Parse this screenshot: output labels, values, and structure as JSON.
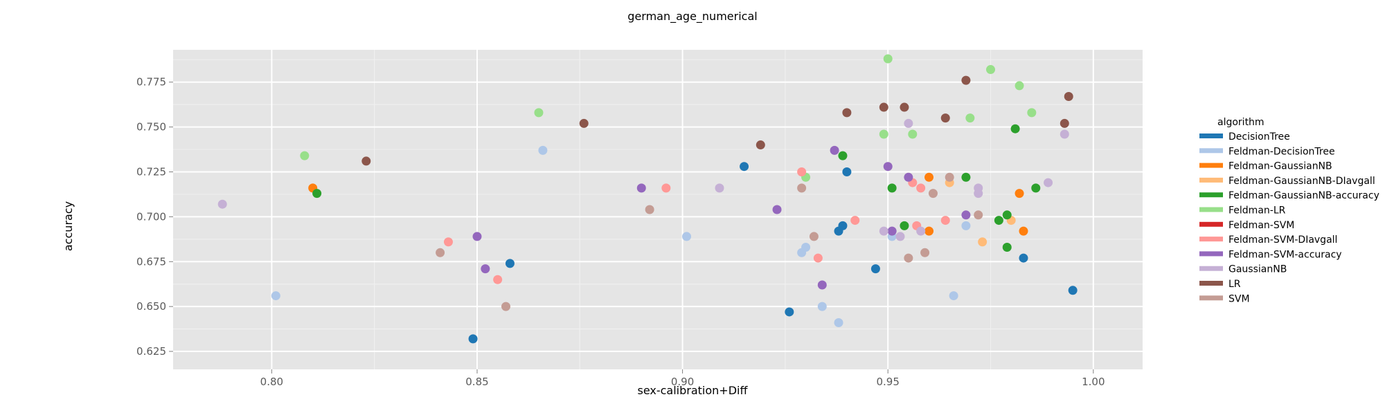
{
  "chart_data": {
    "type": "scatter",
    "title": "german_age_numerical",
    "xlabel": "sex-calibration+Diff",
    "ylabel": "accuracy",
    "xlim": [
      0.776,
      1.012
    ],
    "ylim": [
      0.615,
      0.793
    ],
    "x_ticks": [
      "0.80",
      "0.85",
      "0.90",
      "0.95",
      "1.00"
    ],
    "y_ticks": [
      "0.625",
      "0.650",
      "0.675",
      "0.700",
      "0.725",
      "0.750",
      "0.775"
    ],
    "grid": true,
    "legend_title": "algorithm",
    "legend_position": "right",
    "series": [
      {
        "name": "DecisionTree",
        "color": "#1f77b4",
        "points": [
          [
            0.849,
            0.632
          ],
          [
            0.858,
            0.674
          ],
          [
            0.915,
            0.728
          ],
          [
            0.926,
            0.647
          ],
          [
            0.938,
            0.692
          ],
          [
            0.939,
            0.695
          ],
          [
            0.94,
            0.725
          ],
          [
            0.947,
            0.671
          ],
          [
            0.983,
            0.677
          ],
          [
            0.995,
            0.659
          ]
        ]
      },
      {
        "name": "Feldman-DecisionTree",
        "color": "#aec7e8",
        "points": [
          [
            0.801,
            0.656
          ],
          [
            0.866,
            0.737
          ],
          [
            0.901,
            0.689
          ],
          [
            0.929,
            0.68
          ],
          [
            0.93,
            0.683
          ],
          [
            0.934,
            0.65
          ],
          [
            0.938,
            0.641
          ],
          [
            0.951,
            0.689
          ],
          [
            0.966,
            0.656
          ],
          [
            0.969,
            0.695
          ]
        ]
      },
      {
        "name": "Feldman-GaussianNB",
        "color": "#ff7f0e",
        "points": [
          [
            0.81,
            0.716
          ],
          [
            0.96,
            0.722
          ],
          [
            0.96,
            0.692
          ],
          [
            0.982,
            0.713
          ],
          [
            0.983,
            0.692
          ]
        ]
      },
      {
        "name": "Feldman-GaussianNB-DIavgall",
        "color": "#ffbb78",
        "points": [
          [
            0.965,
            0.719
          ],
          [
            0.973,
            0.686
          ],
          [
            0.98,
            0.698
          ]
        ]
      },
      {
        "name": "Feldman-GaussianNB-accuracy",
        "color": "#2ca02c",
        "points": [
          [
            0.811,
            0.713
          ],
          [
            0.939,
            0.734
          ],
          [
            0.951,
            0.716
          ],
          [
            0.954,
            0.695
          ],
          [
            0.969,
            0.722
          ],
          [
            0.977,
            0.698
          ],
          [
            0.979,
            0.683
          ],
          [
            0.979,
            0.701
          ],
          [
            0.981,
            0.749
          ],
          [
            0.986,
            0.716
          ]
        ]
      },
      {
        "name": "Feldman-LR",
        "color": "#98df8a",
        "points": [
          [
            0.808,
            0.734
          ],
          [
            0.865,
            0.758
          ],
          [
            0.93,
            0.722
          ],
          [
            0.949,
            0.746
          ],
          [
            0.95,
            0.788
          ],
          [
            0.956,
            0.746
          ],
          [
            0.97,
            0.755
          ],
          [
            0.975,
            0.782
          ],
          [
            0.982,
            0.773
          ],
          [
            0.985,
            0.758
          ]
        ]
      },
      {
        "name": "Feldman-SVM",
        "color": "#d62728",
        "points": []
      },
      {
        "name": "Feldman-SVM-DIavgall",
        "color": "#ff9896",
        "points": [
          [
            0.843,
            0.686
          ],
          [
            0.855,
            0.665
          ],
          [
            0.896,
            0.716
          ],
          [
            0.929,
            0.725
          ],
          [
            0.933,
            0.677
          ],
          [
            0.942,
            0.698
          ],
          [
            0.956,
            0.719
          ],
          [
            0.957,
            0.695
          ],
          [
            0.958,
            0.716
          ],
          [
            0.964,
            0.698
          ]
        ]
      },
      {
        "name": "Feldman-SVM-accuracy",
        "color": "#9467bd",
        "points": [
          [
            0.85,
            0.689
          ],
          [
            0.852,
            0.671
          ],
          [
            0.89,
            0.716
          ],
          [
            0.923,
            0.704
          ],
          [
            0.934,
            0.662
          ],
          [
            0.937,
            0.737
          ],
          [
            0.95,
            0.728
          ],
          [
            0.951,
            0.692
          ],
          [
            0.955,
            0.722
          ],
          [
            0.969,
            0.701
          ]
        ]
      },
      {
        "name": "GaussianNB",
        "color": "#c5b0d5",
        "points": [
          [
            0.788,
            0.707
          ],
          [
            0.909,
            0.716
          ],
          [
            0.949,
            0.692
          ],
          [
            0.953,
            0.689
          ],
          [
            0.955,
            0.752
          ],
          [
            0.958,
            0.692
          ],
          [
            0.972,
            0.713
          ],
          [
            0.972,
            0.716
          ],
          [
            0.989,
            0.719
          ],
          [
            0.993,
            0.746
          ]
        ]
      },
      {
        "name": "LR",
        "color": "#8c564b",
        "points": [
          [
            0.823,
            0.731
          ],
          [
            0.876,
            0.752
          ],
          [
            0.919,
            0.74
          ],
          [
            0.94,
            0.758
          ],
          [
            0.949,
            0.761
          ],
          [
            0.954,
            0.761
          ],
          [
            0.964,
            0.755
          ],
          [
            0.969,
            0.776
          ],
          [
            0.993,
            0.752
          ],
          [
            0.994,
            0.767
          ]
        ]
      },
      {
        "name": "SVM",
        "color": "#c49c94",
        "points": [
          [
            0.841,
            0.68
          ],
          [
            0.857,
            0.65
          ],
          [
            0.892,
            0.704
          ],
          [
            0.929,
            0.716
          ],
          [
            0.932,
            0.689
          ],
          [
            0.955,
            0.677
          ],
          [
            0.959,
            0.68
          ],
          [
            0.961,
            0.713
          ],
          [
            0.965,
            0.722
          ],
          [
            0.972,
            0.701
          ]
        ]
      }
    ]
  }
}
